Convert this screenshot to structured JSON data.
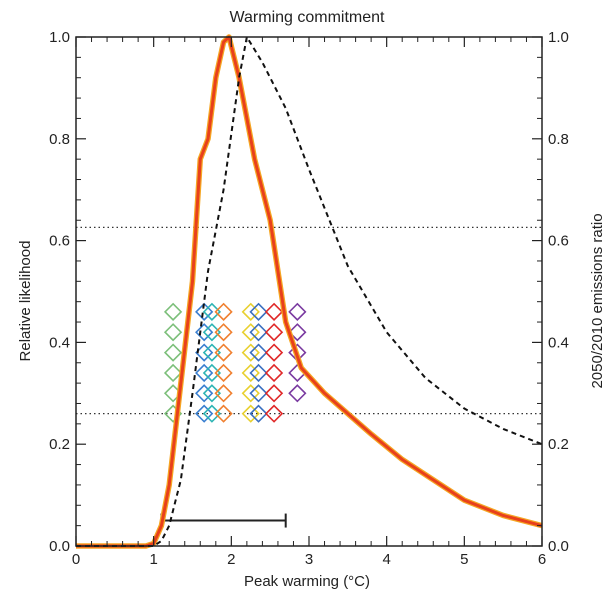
{
  "chart_data": {
    "type": "line",
    "title": "Warming commitment",
    "xlabel": "Peak warming (°C)",
    "ylabel": "Relative likelihood",
    "ylabel_right": "2050/2010 emissions ratio",
    "xlim": [
      0,
      6
    ],
    "ylim": [
      0,
      1
    ],
    "ylim_right": [
      0,
      1
    ],
    "x_ticks": [
      "0",
      "1",
      "2",
      "3",
      "4",
      "5",
      "6"
    ],
    "y_ticks": [
      "0.0",
      "0.2",
      "0.4",
      "0.6",
      "0.8",
      "1.0"
    ],
    "y_ticks_right": [
      "0.0",
      "0.2",
      "0.4",
      "0.6",
      "0.8",
      "1.0"
    ],
    "grid": false,
    "series": [
      {
        "style": "solid",
        "color": "#e8401c",
        "x": [
          0,
          0.9,
          1.0,
          1.1,
          1.2,
          1.35,
          1.5,
          1.6,
          1.7,
          1.8,
          1.9,
          1.97,
          2.1,
          2.3,
          2.5,
          2.7,
          2.9,
          3.2,
          3.5,
          3.8,
          4.2,
          4.6,
          5.0,
          5.5,
          6.0
        ],
        "y": [
          0,
          0,
          0.005,
          0.04,
          0.12,
          0.32,
          0.52,
          0.76,
          0.8,
          0.92,
          0.99,
          1.0,
          0.92,
          0.76,
          0.64,
          0.44,
          0.35,
          0.3,
          0.26,
          0.22,
          0.17,
          0.13,
          0.09,
          0.06,
          0.04
        ]
      },
      {
        "style": "dashed",
        "color": "#111111",
        "x": [
          0,
          1.0,
          1.1,
          1.2,
          1.35,
          1.5,
          1.7,
          1.9,
          2.1,
          2.2,
          2.4,
          2.7,
          3.0,
          3.5,
          4.0,
          4.5,
          5.0,
          5.5,
          6.0
        ],
        "y": [
          0,
          0,
          0.01,
          0.04,
          0.13,
          0.3,
          0.54,
          0.7,
          0.92,
          1.0,
          0.95,
          0.86,
          0.74,
          0.55,
          0.42,
          0.33,
          0.27,
          0.23,
          0.2
        ]
      }
    ],
    "reference_lines": [
      {
        "axis": "y_right",
        "value": 0.626,
        "style": "dotted"
      },
      {
        "axis": "y_right",
        "value": 0.26,
        "style": "dotted"
      }
    ],
    "range_bar": {
      "x": [
        1.1,
        2.7
      ],
      "y": 0.05
    },
    "scatter_groups": [
      {
        "color": "#7cbf7a",
        "x": 1.25,
        "y": [
          0.26,
          0.3,
          0.34,
          0.38,
          0.42,
          0.46
        ]
      },
      {
        "color": "#3a7fd0",
        "x": 1.65,
        "y": [
          0.26,
          0.3,
          0.34,
          0.38,
          0.42,
          0.46
        ]
      },
      {
        "color": "#2db4b4",
        "x": 1.75,
        "y": [
          0.26,
          0.3,
          0.34,
          0.38,
          0.42,
          0.46
        ]
      },
      {
        "color": "#f08030",
        "x": 1.9,
        "y": [
          0.26,
          0.3,
          0.34,
          0.38,
          0.42,
          0.46
        ]
      },
      {
        "color": "#e8d030",
        "x": 2.25,
        "y": [
          0.26,
          0.3,
          0.34,
          0.38,
          0.42,
          0.46
        ]
      },
      {
        "color": "#3a6fc0",
        "x": 2.35,
        "y": [
          0.26,
          0.3,
          0.34,
          0.38,
          0.42,
          0.46
        ]
      },
      {
        "color": "#e02828",
        "x": 2.55,
        "y": [
          0.26,
          0.3,
          0.34,
          0.38,
          0.42,
          0.46
        ]
      },
      {
        "color": "#7a3aa0",
        "x": 2.85,
        "y": [
          0.3,
          0.34,
          0.38,
          0.42,
          0.46
        ]
      }
    ]
  }
}
